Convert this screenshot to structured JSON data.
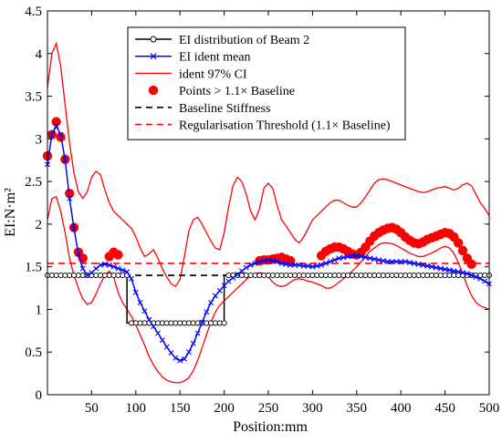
{
  "chart_data": {
    "type": "line",
    "xlabel": "Position:mm",
    "ylabel": "EI:N·m²",
    "xlim": [
      0,
      500
    ],
    "ylim": [
      0,
      4.5
    ],
    "xticks": [
      50,
      100,
      150,
      200,
      250,
      300,
      350,
      400,
      450,
      500
    ],
    "yticks": [
      0,
      0.5,
      1,
      1.5,
      2,
      2.5,
      3,
      3.5,
      4,
      4.5
    ],
    "xtick_labels": [
      "50",
      "100",
      "150",
      "200",
      "250",
      "300",
      "350",
      "400",
      "450",
      "500"
    ],
    "ytick_labels": [
      "0",
      "0.5",
      "1",
      "1.5",
      "2",
      "2.5",
      "3",
      "3.5",
      "4",
      "4.5"
    ],
    "grid": false,
    "legend_position": "top-center",
    "series": [
      {
        "name": "EI distribution of Beam 2",
        "kind": "line-circles",
        "color": "#000000",
        "x": [
          0,
          90,
          90.01,
          200,
          200.01,
          500
        ],
        "y": [
          1.4,
          1.4,
          0.84,
          0.84,
          1.4,
          1.4
        ]
      },
      {
        "name": "EI ident mean",
        "kind": "line-x",
        "color": "#0000ff",
        "x": [
          0,
          5,
          10,
          15,
          20,
          25,
          30,
          35,
          40,
          45,
          50,
          55,
          60,
          65,
          70,
          75,
          80,
          85,
          90,
          95,
          100,
          105,
          110,
          115,
          120,
          125,
          130,
          135,
          140,
          145,
          150,
          155,
          160,
          165,
          170,
          175,
          180,
          185,
          190,
          195,
          200,
          205,
          210,
          215,
          220,
          225,
          230,
          235,
          240,
          245,
          250,
          255,
          260,
          265,
          270,
          275,
          280,
          285,
          290,
          295,
          300,
          305,
          310,
          315,
          320,
          325,
          330,
          335,
          340,
          345,
          350,
          355,
          360,
          365,
          370,
          375,
          380,
          385,
          390,
          395,
          400,
          405,
          410,
          415,
          420,
          425,
          430,
          435,
          440,
          445,
          450,
          455,
          460,
          465,
          470,
          475,
          480,
          485,
          490,
          495,
          500
        ],
        "y": [
          2.7,
          3.05,
          3.15,
          3.05,
          2.75,
          2.3,
          1.95,
          1.65,
          1.48,
          1.4,
          1.43,
          1.48,
          1.52,
          1.53,
          1.52,
          1.5,
          1.48,
          1.46,
          1.44,
          1.36,
          1.2,
          1.08,
          0.98,
          0.88,
          0.8,
          0.72,
          0.64,
          0.56,
          0.49,
          0.43,
          0.4,
          0.42,
          0.5,
          0.6,
          0.72,
          0.85,
          0.97,
          1.08,
          1.16,
          1.22,
          1.28,
          1.33,
          1.37,
          1.41,
          1.45,
          1.49,
          1.52,
          1.54,
          1.56,
          1.57,
          1.58,
          1.57,
          1.56,
          1.54,
          1.53,
          1.52,
          1.52,
          1.52,
          1.51,
          1.51,
          1.5,
          1.51,
          1.52,
          1.54,
          1.56,
          1.58,
          1.6,
          1.61,
          1.62,
          1.63,
          1.63,
          1.62,
          1.61,
          1.6,
          1.59,
          1.58,
          1.57,
          1.56,
          1.56,
          1.56,
          1.56,
          1.56,
          1.55,
          1.54,
          1.53,
          1.52,
          1.51,
          1.5,
          1.49,
          1.48,
          1.47,
          1.46,
          1.45,
          1.44,
          1.43,
          1.42,
          1.4,
          1.38,
          1.36,
          1.33,
          1.3
        ]
      },
      {
        "name": "ident 97% CI",
        "kind": "line",
        "color": "#ff0000",
        "x": [
          0,
          5,
          10,
          15,
          20,
          25,
          30,
          35,
          40,
          45,
          50,
          55,
          60,
          65,
          70,
          75,
          80,
          85,
          90,
          95,
          100,
          105,
          110,
          115,
          120,
          125,
          130,
          135,
          140,
          145,
          150,
          155,
          160,
          165,
          170,
          175,
          180,
          185,
          190,
          195,
          200,
          205,
          210,
          215,
          220,
          225,
          230,
          235,
          240,
          245,
          250,
          255,
          260,
          265,
          270,
          275,
          280,
          285,
          290,
          295,
          300,
          305,
          310,
          315,
          320,
          325,
          330,
          335,
          340,
          345,
          350,
          355,
          360,
          365,
          370,
          375,
          380,
          385,
          390,
          395,
          400,
          405,
          410,
          415,
          420,
          425,
          430,
          435,
          440,
          445,
          450,
          455,
          460,
          465,
          470,
          475,
          480,
          485,
          490,
          495,
          500
        ],
        "y": [
          3.6,
          4.0,
          4.12,
          3.85,
          3.4,
          2.95,
          2.6,
          2.38,
          2.3,
          2.38,
          2.55,
          2.62,
          2.58,
          2.4,
          2.25,
          2.15,
          2.1,
          2.05,
          2.0,
          1.95,
          1.85,
          1.72,
          1.62,
          1.65,
          1.7,
          1.6,
          1.48,
          1.38,
          1.3,
          1.27,
          1.35,
          1.62,
          1.92,
          2.05,
          2.08,
          2.0,
          1.9,
          1.8,
          1.72,
          1.7,
          1.9,
          2.2,
          2.45,
          2.55,
          2.5,
          2.35,
          2.15,
          2.05,
          2.18,
          2.42,
          2.48,
          2.42,
          2.22,
          2.05,
          1.98,
          1.9,
          1.82,
          1.78,
          1.85,
          1.95,
          2.05,
          2.1,
          2.15,
          2.2,
          2.25,
          2.28,
          2.28,
          2.25,
          2.22,
          2.2,
          2.2,
          2.25,
          2.32,
          2.4,
          2.48,
          2.52,
          2.53,
          2.52,
          2.5,
          2.48,
          2.46,
          2.44,
          2.42,
          2.4,
          2.38,
          2.37,
          2.38,
          2.4,
          2.42,
          2.43,
          2.44,
          2.42,
          2.4,
          2.42,
          2.46,
          2.48,
          2.45,
          2.35,
          2.25,
          2.18,
          2.1
        ]
      },
      {
        "name": "",
        "kind": "line",
        "color": "#ff0000",
        "x": [
          0,
          5,
          10,
          15,
          20,
          25,
          30,
          35,
          40,
          45,
          50,
          55,
          60,
          65,
          70,
          75,
          80,
          85,
          90,
          95,
          100,
          105,
          110,
          115,
          120,
          125,
          130,
          135,
          140,
          145,
          150,
          155,
          160,
          165,
          170,
          175,
          180,
          185,
          190,
          195,
          200,
          205,
          210,
          215,
          220,
          225,
          230,
          235,
          240,
          245,
          250,
          255,
          260,
          265,
          270,
          275,
          280,
          285,
          290,
          295,
          300,
          305,
          310,
          315,
          320,
          325,
          330,
          335,
          340,
          345,
          350,
          355,
          360,
          365,
          370,
          375,
          380,
          385,
          390,
          395,
          400,
          405,
          410,
          415,
          420,
          425,
          430,
          435,
          440,
          445,
          450,
          455,
          460,
          465,
          470,
          475,
          480,
          485,
          490,
          495,
          500
        ],
        "y": [
          2.05,
          2.3,
          2.32,
          2.15,
          1.9,
          1.6,
          1.4,
          1.25,
          1.12,
          1.06,
          1.08,
          1.18,
          1.3,
          1.4,
          1.45,
          1.38,
          1.2,
          1.08,
          1.0,
          0.92,
          0.82,
          0.7,
          0.58,
          0.45,
          0.35,
          0.27,
          0.21,
          0.17,
          0.15,
          0.14,
          0.14,
          0.16,
          0.2,
          0.28,
          0.4,
          0.55,
          0.7,
          0.85,
          0.97,
          1.05,
          1.1,
          1.15,
          1.2,
          1.25,
          1.3,
          1.35,
          1.4,
          1.42,
          1.43,
          1.42,
          1.38,
          1.32,
          1.28,
          1.27,
          1.28,
          1.32,
          1.35,
          1.36,
          1.35,
          1.33,
          1.32,
          1.3,
          1.28,
          1.25,
          1.25,
          1.28,
          1.32,
          1.36,
          1.4,
          1.45,
          1.5,
          1.56,
          1.62,
          1.68,
          1.72,
          1.76,
          1.78,
          1.78,
          1.77,
          1.75,
          1.72,
          1.69,
          1.66,
          1.64,
          1.62,
          1.62,
          1.64,
          1.66,
          1.69,
          1.72,
          1.74,
          1.72,
          1.66,
          1.55,
          1.42,
          1.28,
          1.16,
          1.08,
          1.04,
          1.02,
          1.0
        ]
      },
      {
        "name": "Points > 1.1× Baseline",
        "kind": "dots",
        "color": "#ff0000",
        "x": [
          0,
          5,
          10,
          15,
          20,
          25,
          30,
          35,
          40,
          70,
          75,
          80,
          240,
          245,
          250,
          255,
          260,
          265,
          270,
          275,
          310,
          315,
          320,
          325,
          330,
          335,
          340,
          345,
          350,
          355,
          360,
          365,
          370,
          375,
          380,
          385,
          390,
          395,
          400,
          405,
          410,
          415,
          420,
          425,
          430,
          435,
          440,
          445,
          450,
          455,
          460,
          465,
          470,
          475,
          480
        ],
        "y": [
          2.8,
          3.05,
          3.2,
          3.02,
          2.76,
          2.36,
          1.96,
          1.67,
          1.6,
          1.62,
          1.67,
          1.64,
          1.57,
          1.58,
          1.58,
          1.59,
          1.6,
          1.61,
          1.59,
          1.57,
          1.63,
          1.68,
          1.71,
          1.73,
          1.73,
          1.71,
          1.68,
          1.65,
          1.64,
          1.67,
          1.73,
          1.8,
          1.86,
          1.9,
          1.93,
          1.95,
          1.96,
          1.94,
          1.9,
          1.85,
          1.81,
          1.78,
          1.77,
          1.79,
          1.82,
          1.84,
          1.86,
          1.88,
          1.9,
          1.89,
          1.85,
          1.78,
          1.69,
          1.6,
          1.53
        ]
      },
      {
        "name": "Baseline Stiffness",
        "kind": "dashed",
        "color": "#000000",
        "x": [
          0,
          500
        ],
        "y": [
          1.4,
          1.4
        ]
      },
      {
        "name": "Regularisation Threshold (1.1× Baseline)",
        "kind": "dashed",
        "color": "#ff0000",
        "x": [
          0,
          500
        ],
        "y": [
          1.54,
          1.54
        ]
      }
    ]
  }
}
